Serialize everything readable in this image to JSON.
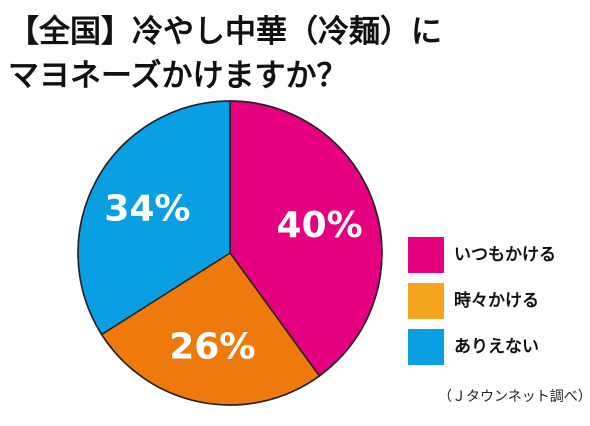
{
  "title": {
    "line1": "【全国】冷やし中華（冷麺）に",
    "line2": "マヨネーズかけますか？"
  },
  "chart_data": {
    "type": "pie",
    "title": "【全国】冷やし中華（冷麺）にマヨネーズかけますか？",
    "slices": [
      {
        "label": "いつもかける",
        "value": 40,
        "display": "40%",
        "color": "#e4007f"
      },
      {
        "label": "時々かける",
        "value": 26,
        "display": "26%",
        "color": "#ee7a0c"
      },
      {
        "label": "ありえない",
        "value": 34,
        "display": "34%",
        "color": "#0a9fe3"
      }
    ],
    "start": "12 o'clock",
    "direction": "clockwise",
    "legend_position": "right"
  },
  "legend": {
    "items": [
      {
        "label": "いつもかける",
        "color": "#e4007f"
      },
      {
        "label": "時々かける",
        "color": "#f2a51d"
      },
      {
        "label": "ありえない",
        "color": "#0a9fe3"
      }
    ]
  },
  "source": "（Ｊタウンネット調べ）"
}
